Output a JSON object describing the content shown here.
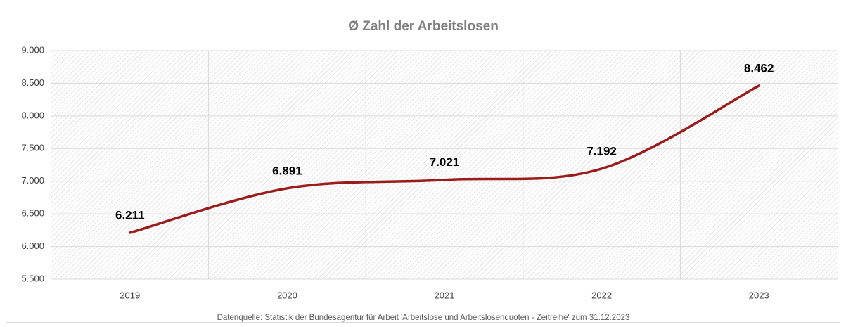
{
  "chart_data": {
    "type": "line",
    "title": "Ø Zahl der Arbeitslosen",
    "categories": [
      "2019",
      "2020",
      "2021",
      "2022",
      "2023"
    ],
    "series": [
      {
        "name": "Ø Zahl der Arbeitslosen",
        "color": "#9b1c1c",
        "values": [
          6211,
          6891,
          7021,
          7192,
          8462
        ],
        "value_labels": [
          "6.211",
          "6.891",
          "7.021",
          "7.192",
          "8.462"
        ]
      }
    ],
    "ylim": [
      5500,
      9000
    ],
    "yticks": [
      {
        "value": 5500,
        "label": "5.500"
      },
      {
        "value": 6000,
        "label": "6.000"
      },
      {
        "value": 6500,
        "label": "6.500"
      },
      {
        "value": 7000,
        "label": "7.000"
      },
      {
        "value": 7500,
        "label": "7.500"
      },
      {
        "value": 8000,
        "label": "8.000"
      },
      {
        "value": 8500,
        "label": "8.500"
      },
      {
        "value": 9000,
        "label": "9.000"
      }
    ],
    "grid": true,
    "smooth": true,
    "source": "Datenquelle: Statistik der Bundesagentur für Arbeit 'Arbeitslose und Arbeitslosenquoten  - Zeitreihe' zum 31.12.2023"
  }
}
